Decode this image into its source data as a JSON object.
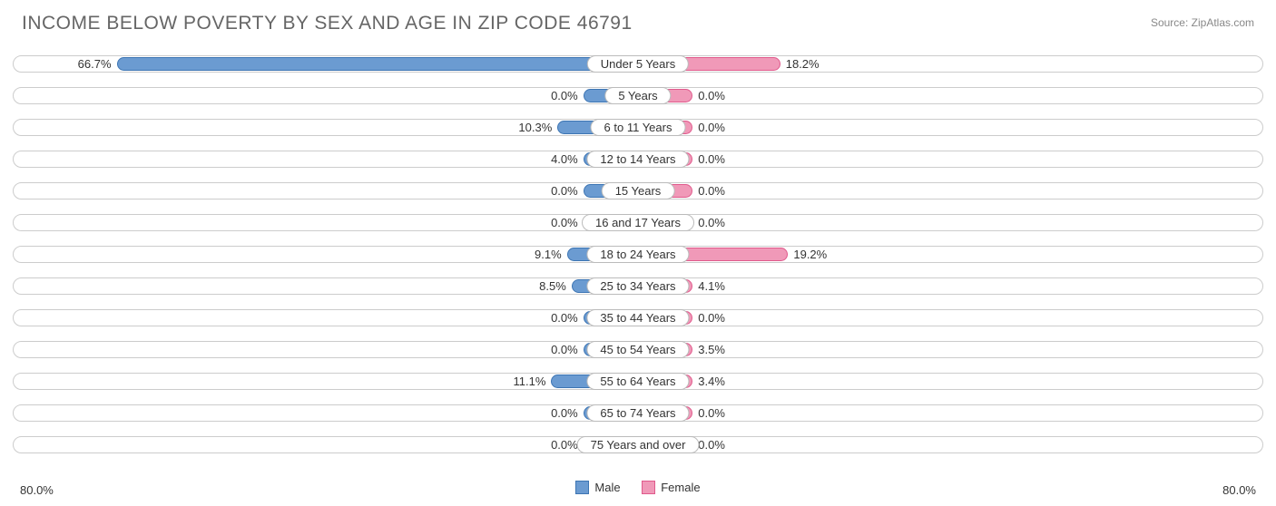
{
  "title": "INCOME BELOW POVERTY BY SEX AND AGE IN ZIP CODE 46791",
  "source": "Source: ZipAtlas.com",
  "chart": {
    "type": "diverging-bar",
    "axis_max": 80.0,
    "axis_label_left": "80.0%",
    "axis_label_right": "80.0%",
    "min_bar_pct": 7.0,
    "colors": {
      "male_fill": "#6b9bd1",
      "male_border": "#3d75b3",
      "female_fill": "#f099b8",
      "female_border": "#e05a8c",
      "track_border": "#cccccc",
      "text": "#333333",
      "title_text": "#666666"
    },
    "legend": {
      "male": "Male",
      "female": "Female"
    },
    "font_sizes": {
      "title": 21,
      "labels": 13,
      "source": 12
    },
    "rows": [
      {
        "category": "Under 5 Years",
        "male": 66.7,
        "female": 18.2,
        "male_label": "66.7%",
        "female_label": "18.2%"
      },
      {
        "category": "5 Years",
        "male": 0.0,
        "female": 0.0,
        "male_label": "0.0%",
        "female_label": "0.0%"
      },
      {
        "category": "6 to 11 Years",
        "male": 10.3,
        "female": 0.0,
        "male_label": "10.3%",
        "female_label": "0.0%"
      },
      {
        "category": "12 to 14 Years",
        "male": 4.0,
        "female": 0.0,
        "male_label": "4.0%",
        "female_label": "0.0%"
      },
      {
        "category": "15 Years",
        "male": 0.0,
        "female": 0.0,
        "male_label": "0.0%",
        "female_label": "0.0%"
      },
      {
        "category": "16 and 17 Years",
        "male": 0.0,
        "female": 0.0,
        "male_label": "0.0%",
        "female_label": "0.0%"
      },
      {
        "category": "18 to 24 Years",
        "male": 9.1,
        "female": 19.2,
        "male_label": "9.1%",
        "female_label": "19.2%"
      },
      {
        "category": "25 to 34 Years",
        "male": 8.5,
        "female": 4.1,
        "male_label": "8.5%",
        "female_label": "4.1%"
      },
      {
        "category": "35 to 44 Years",
        "male": 0.0,
        "female": 0.0,
        "male_label": "0.0%",
        "female_label": "0.0%"
      },
      {
        "category": "45 to 54 Years",
        "male": 0.0,
        "female": 3.5,
        "male_label": "0.0%",
        "female_label": "3.5%"
      },
      {
        "category": "55 to 64 Years",
        "male": 11.1,
        "female": 3.4,
        "male_label": "11.1%",
        "female_label": "3.4%"
      },
      {
        "category": "65 to 74 Years",
        "male": 0.0,
        "female": 0.0,
        "male_label": "0.0%",
        "female_label": "0.0%"
      },
      {
        "category": "75 Years and over",
        "male": 0.0,
        "female": 0.0,
        "male_label": "0.0%",
        "female_label": "0.0%"
      }
    ]
  }
}
